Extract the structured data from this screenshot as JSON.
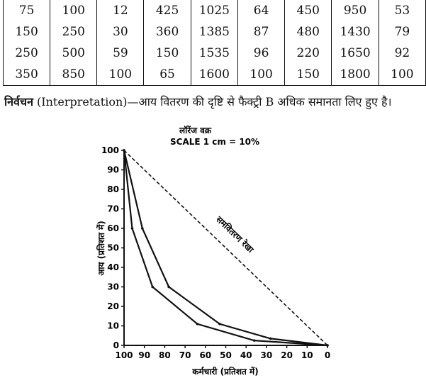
{
  "table": {
    "rows": [
      [
        "75",
        "100",
        "12",
        "425",
        "1025",
        "64",
        "450",
        "950",
        "53"
      ],
      [
        "150",
        "250",
        "30",
        "360",
        "1385",
        "87",
        "480",
        "1430",
        "79"
      ],
      [
        "250",
        "500",
        "59",
        "150",
        "1535",
        "96",
        "220",
        "1650",
        "92"
      ],
      [
        "350",
        "850",
        "100",
        "65",
        "1600",
        "100",
        "150",
        "1800",
        "100"
      ]
    ]
  },
  "interpretation": {
    "heading": "निर्वचन",
    "text": " (Interpretation)—आय वितरण की दृष्टि से फैक्ट्री B अधिक समानता लिए हुए है।"
  },
  "chart_data": {
    "type": "line",
    "title": "लॉरेंज वक्र",
    "subtitle": "SCALE 1 cm = 10%",
    "xlabel": "कर्मचारी (प्रतिशत में)",
    "ylabel": "आय (प्रतिशत में)",
    "xlim": [
      100,
      0
    ],
    "ylim": [
      0,
      100
    ],
    "x_reversed": true,
    "x_ticks": [
      100,
      90,
      80,
      70,
      60,
      50,
      40,
      30,
      20,
      10,
      0
    ],
    "y_ticks": [
      0,
      10,
      20,
      30,
      40,
      50,
      60,
      70,
      80,
      90,
      100
    ],
    "grid": false,
    "equality_line": {
      "label": "समवितरण रेखा",
      "points": [
        [
          100,
          100
        ],
        [
          0,
          0
        ]
      ]
    },
    "series": [
      {
        "points": [
          [
            100,
            100
          ],
          [
            96,
            60
          ],
          [
            86,
            30
          ],
          [
            64,
            11
          ],
          [
            36,
            2.5
          ],
          [
            0,
            0
          ]
        ]
      },
      {
        "points": [
          [
            100,
            100
          ],
          [
            91,
            60
          ],
          [
            78,
            30
          ],
          [
            53,
            11
          ],
          [
            28,
            3.5
          ],
          [
            0,
            0
          ]
        ]
      }
    ]
  }
}
